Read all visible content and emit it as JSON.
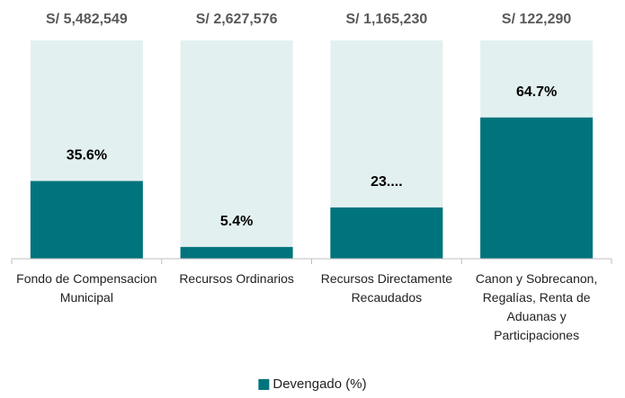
{
  "chart_data": {
    "type": "bar",
    "categories": [
      "Fondo de Compensacion Municipal",
      "Recursos Ordinarios",
      "Recursos Directamente Recaudados",
      "Canon y Sobrecanon, Regalías, Renta de Aduanas y Participaciones"
    ],
    "series": [
      {
        "name": "Devengado (%)",
        "color": "#00747c",
        "values": [
          35.6,
          5.4,
          23.5,
          64.7
        ],
        "value_labels": [
          "35.6%",
          "5.4%",
          "23....",
          "64.7%"
        ]
      }
    ],
    "totals": [
      5482549,
      2627576,
      1165230,
      122290
    ],
    "total_labels": [
      "S/ 5,482,549",
      "S/ 2,627,576",
      "S/ 1,165,230",
      "S/ 122,290"
    ],
    "ylim": [
      0,
      100
    ],
    "background_color": "#e3f0f0",
    "legend": "bottom"
  }
}
